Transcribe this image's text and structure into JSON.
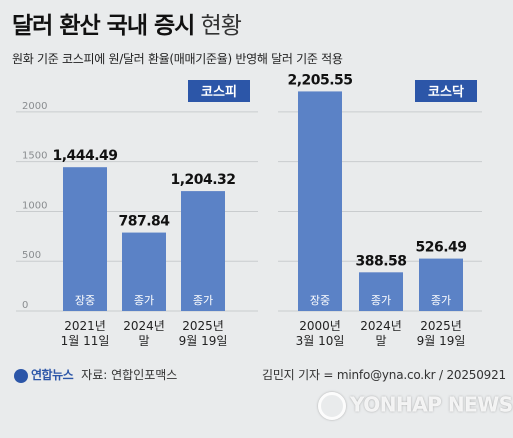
{
  "header": {
    "title_bold": "달러 환산 국내 증시",
    "title_light": "현황",
    "subtitle": "원화 기준 코스피에 원/달러 환율(매매기준율) 반영해 달러 기준 적용"
  },
  "footer": {
    "logo_text": "연합뉴스",
    "source": "자료: 연합인포맥스",
    "credit": "김민지 기자 = minfo@yna.co.kr / 20250921",
    "watermark": "YONHAP NEWS"
  },
  "colors": {
    "bar": "#5b82c6",
    "badge": "#2c56a8",
    "grid": "#c9ccce",
    "background": "#e9ebec"
  },
  "chart_data": [
    {
      "type": "bar",
      "title": "코스피",
      "ylim": [
        0,
        2250
      ],
      "yticks": [
        0,
        500,
        1000,
        1500,
        2000
      ],
      "tick_labels": [
        "0",
        "500",
        "1000",
        "1500",
        "2000"
      ],
      "categories": [
        "2021년\n1월 11일",
        "2024년\n말",
        "2025년\n9월 19일"
      ],
      "bar_labels": [
        "장중",
        "종가",
        "종가"
      ],
      "values": [
        1444.49,
        787.84,
        1204.32
      ],
      "value_labels": [
        "1,444.49",
        "787.84",
        "1,204.32"
      ]
    },
    {
      "type": "bar",
      "title": "코스닥",
      "ylim": [
        0,
        2250
      ],
      "categories": [
        "2000년\n3월 10일",
        "2024년\n말",
        "2025년\n9월 19일"
      ],
      "bar_labels": [
        "장중",
        "종가",
        "종가"
      ],
      "values": [
        2205.55,
        388.58,
        526.49
      ],
      "value_labels": [
        "2,205.55",
        "388.58",
        "526.49"
      ]
    }
  ]
}
